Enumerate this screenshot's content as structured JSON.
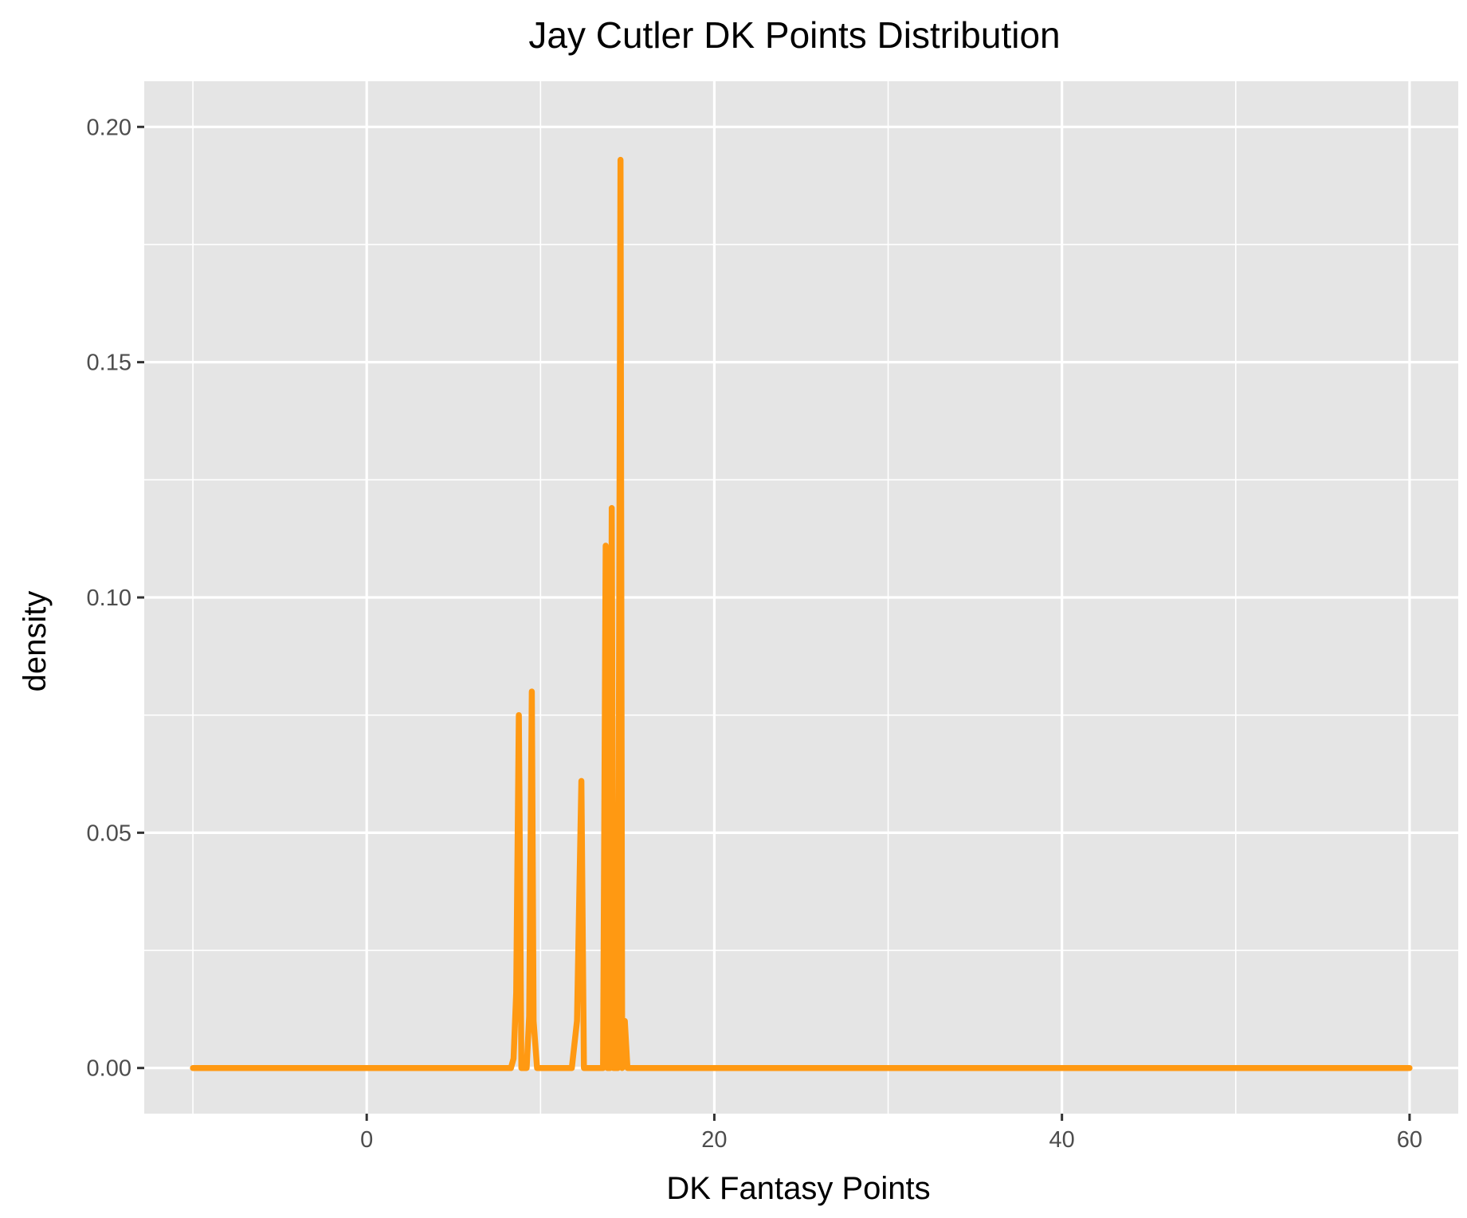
{
  "chart_data": {
    "type": "line",
    "title": "Jay Cutler DK Points Distribution",
    "xlabel": "DK Fantasy Points",
    "ylabel": "density",
    "xlim": [
      -12.8,
      62.8
    ],
    "ylim": [
      -0.0097,
      0.2097
    ],
    "x_ticks": [
      0,
      20,
      40,
      60
    ],
    "x_tick_labels": [
      "0",
      "20",
      "40",
      "60"
    ],
    "x_minor_ticks": [
      -10,
      10,
      30,
      50
    ],
    "y_ticks": [
      0,
      0.05,
      0.1,
      0.15,
      0.2
    ],
    "y_tick_labels": [
      "0.00",
      "0.05",
      "0.10",
      "0.15",
      "0.20"
    ],
    "y_minor_ticks": [
      0.025,
      0.075,
      0.125,
      0.175
    ],
    "grid": true,
    "panel_color": "#e5e5e5",
    "line_color": "#ff9912",
    "series": [
      {
        "x": [
          -10,
          8.3,
          8.45,
          8.6,
          8.75,
          8.9,
          9.2,
          9.35,
          9.5,
          9.6,
          9.8,
          11.6,
          11.8,
          12.1,
          12.35,
          12.5,
          13.4,
          13.6,
          13.75,
          13.85,
          14.0,
          14.1,
          14.2,
          14.3,
          14.45,
          14.6,
          14.7,
          14.85,
          15.0,
          15.2,
          60
        ],
        "y": [
          0,
          0,
          0.002,
          0.016,
          0.075,
          0,
          0,
          0.011,
          0.08,
          0.01,
          0,
          0,
          0,
          0.01,
          0.061,
          0,
          0,
          0,
          0.111,
          0,
          0,
          0.119,
          0,
          0,
          0,
          0.193,
          0,
          0.01,
          0,
          0,
          0
        ]
      }
    ]
  }
}
